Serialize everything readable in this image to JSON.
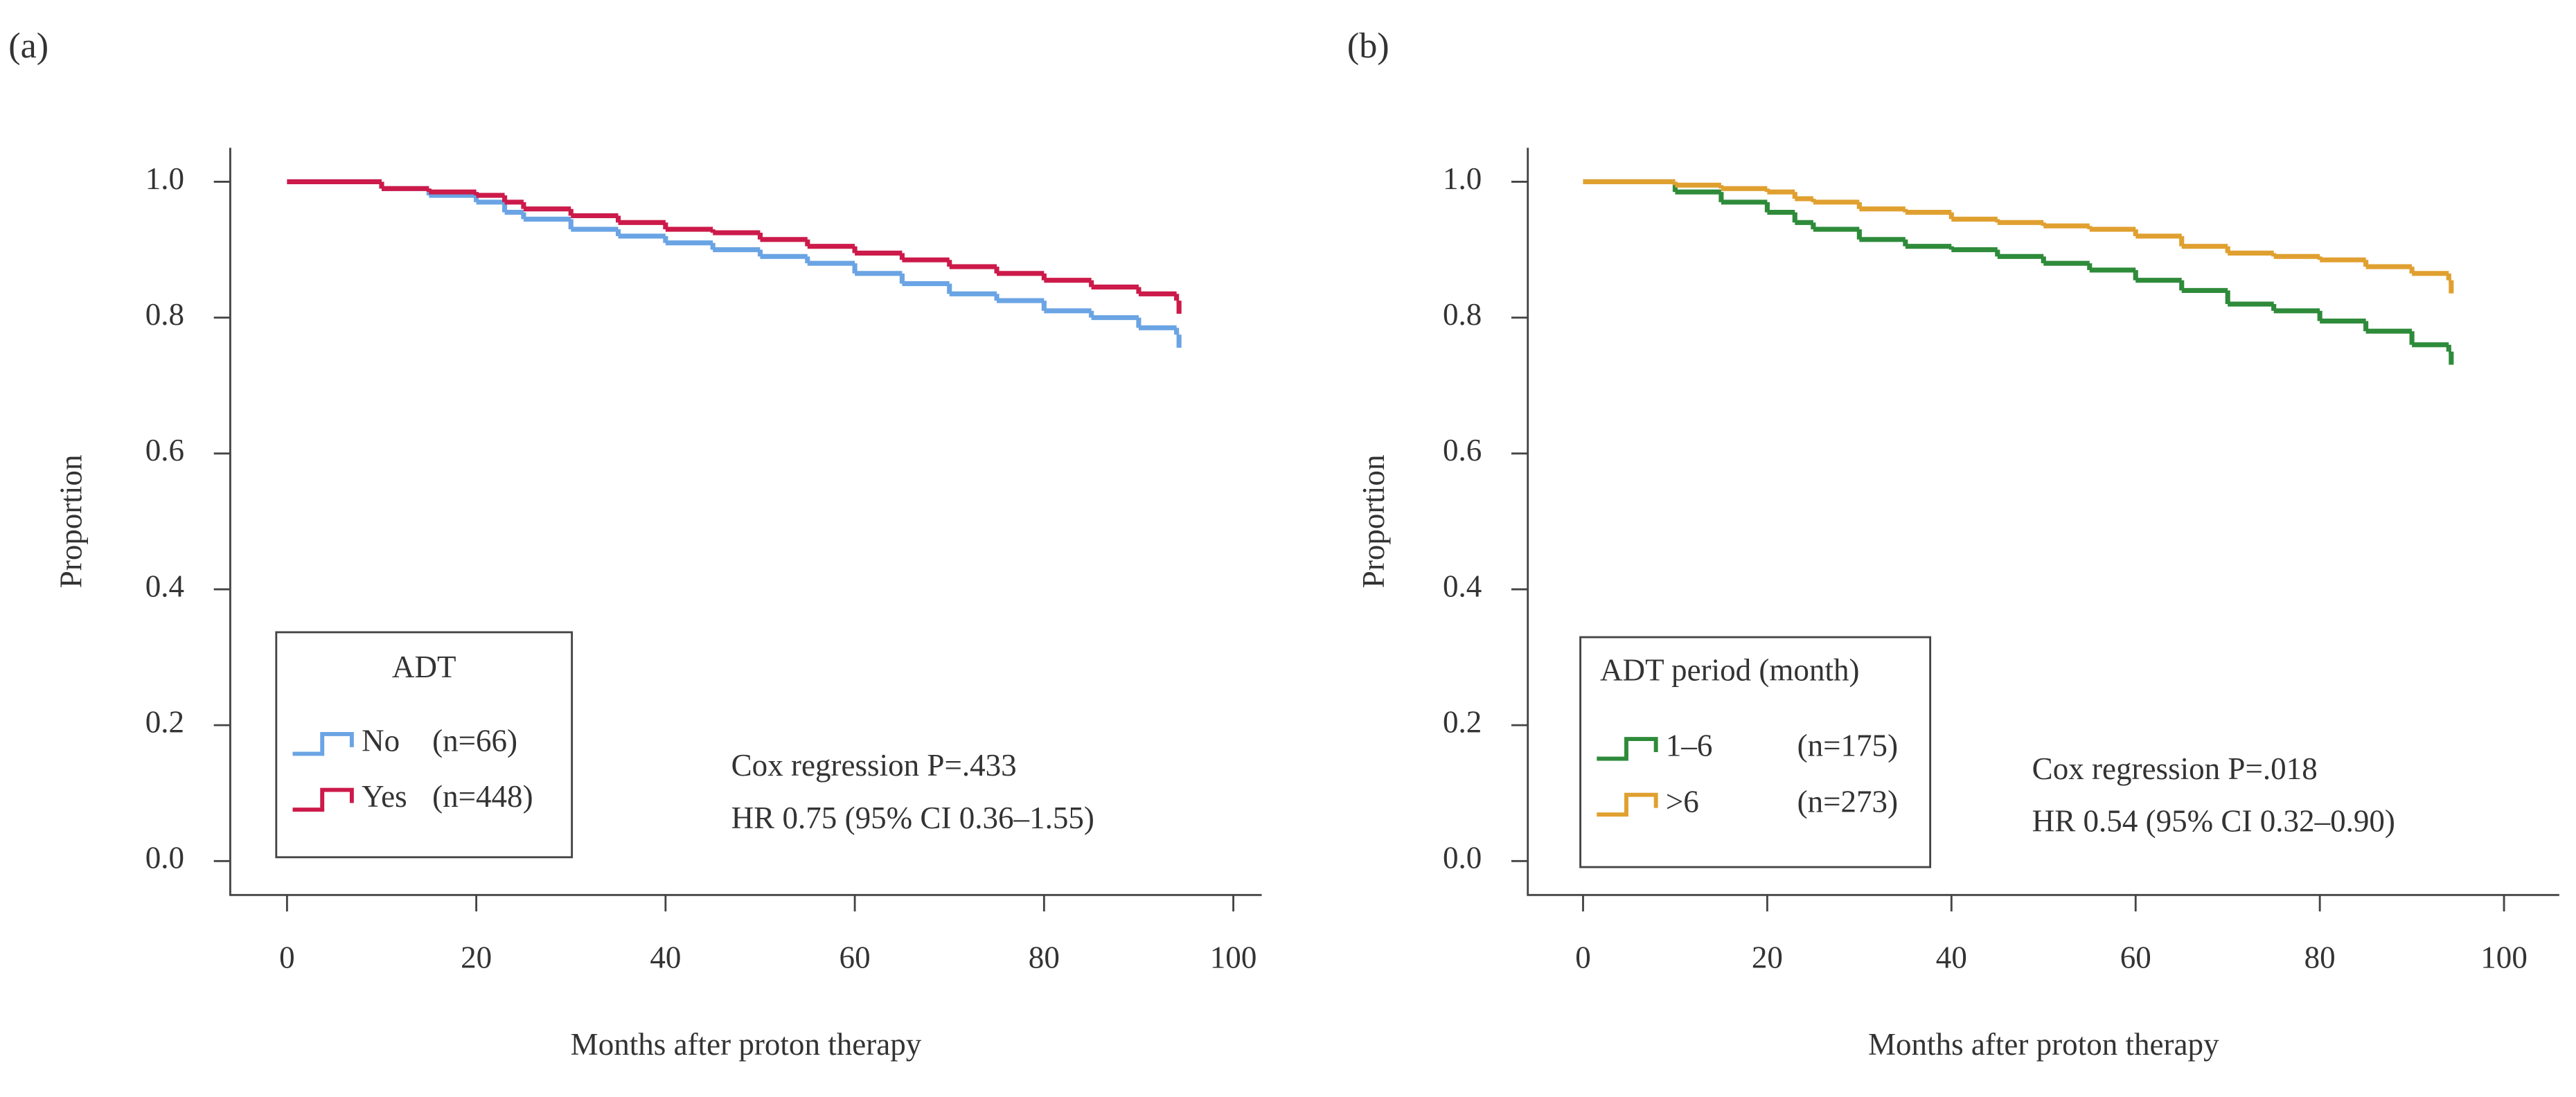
{
  "chart_data": [
    {
      "type": "step",
      "panel_label": "(a)",
      "ylabel": "Proportion",
      "xlabel": "Months after proton therapy",
      "x": [
        0,
        10,
        15,
        20,
        23,
        25,
        30,
        35,
        40,
        45,
        50,
        55,
        60,
        65,
        70,
        75,
        80,
        85,
        90,
        94
      ],
      "series": [
        {
          "name": "No",
          "count_label": "(n=66)",
          "color": "#6aa4e4",
          "values": [
            1,
            0.99,
            0.98,
            0.97,
            0.955,
            0.945,
            0.93,
            0.92,
            0.91,
            0.9,
            0.89,
            0.88,
            0.865,
            0.85,
            0.835,
            0.825,
            0.81,
            0.8,
            0.785,
            0.775
          ]
        },
        {
          "name": "Yes",
          "count_label": "(n=448)",
          "color": "#cc1a4a",
          "values": [
            1,
            0.99,
            0.985,
            0.98,
            0.97,
            0.96,
            0.95,
            0.94,
            0.93,
            0.925,
            0.915,
            0.905,
            0.895,
            0.885,
            0.875,
            0.865,
            0.855,
            0.845,
            0.835,
            0.825
          ]
        }
      ],
      "legend_title": "ADT",
      "legend": "lower left",
      "annotations": [
        "Cox regression  P=.433",
        "HR 0.75 (95% CI 0.36–1.55)"
      ],
      "xlim": [
        -6,
        103
      ],
      "xticks": [
        0,
        20,
        40,
        60,
        80,
        100
      ],
      "ylim": [
        -0.05,
        1.05
      ],
      "yticks": [
        {
          "value": 0,
          "label": "0.0"
        },
        0.2,
        0.4,
        0.6,
        0.8,
        {
          "value": 1,
          "label": "1.0"
        }
      ]
    },
    {
      "type": "step",
      "panel_label": "(b)",
      "ylabel": "Proportion",
      "xlabel": "Months after proton therapy",
      "x": [
        0,
        10,
        15,
        20,
        23,
        25,
        30,
        35,
        40,
        45,
        50,
        55,
        60,
        65,
        70,
        75,
        80,
        85,
        90,
        94
      ],
      "series": [
        {
          "name": "1–6",
          "count_label": "(n=175)",
          "color": "#2e8b3a",
          "values": [
            1,
            0.985,
            0.97,
            0.955,
            0.94,
            0.93,
            0.915,
            0.905,
            0.9,
            0.89,
            0.88,
            0.87,
            0.855,
            0.84,
            0.82,
            0.81,
            0.795,
            0.78,
            0.76,
            0.75
          ]
        },
        {
          "name": ">6",
          "count_label": "(n=273)",
          "color": "#e0a030",
          "values": [
            1,
            0.995,
            0.99,
            0.985,
            0.975,
            0.97,
            0.96,
            0.955,
            0.945,
            0.94,
            0.935,
            0.93,
            0.92,
            0.905,
            0.895,
            0.89,
            0.885,
            0.875,
            0.865,
            0.855
          ]
        }
      ],
      "legend_title": "ADT period (month)",
      "legend": "lower left",
      "annotations": [
        "Cox regression  P=.018",
        "HR 0.54 (95% CI 0.32–0.90)"
      ],
      "xlim": [
        -6,
        106
      ],
      "xticks": [
        0,
        20,
        40,
        60,
        80,
        100
      ],
      "ylim": [
        -0.05,
        1.05
      ],
      "yticks": [
        {
          "value": 0,
          "label": "0.0"
        },
        0.2,
        0.4,
        0.6,
        0.8,
        {
          "value": 1,
          "label": "1.0"
        }
      ]
    }
  ]
}
